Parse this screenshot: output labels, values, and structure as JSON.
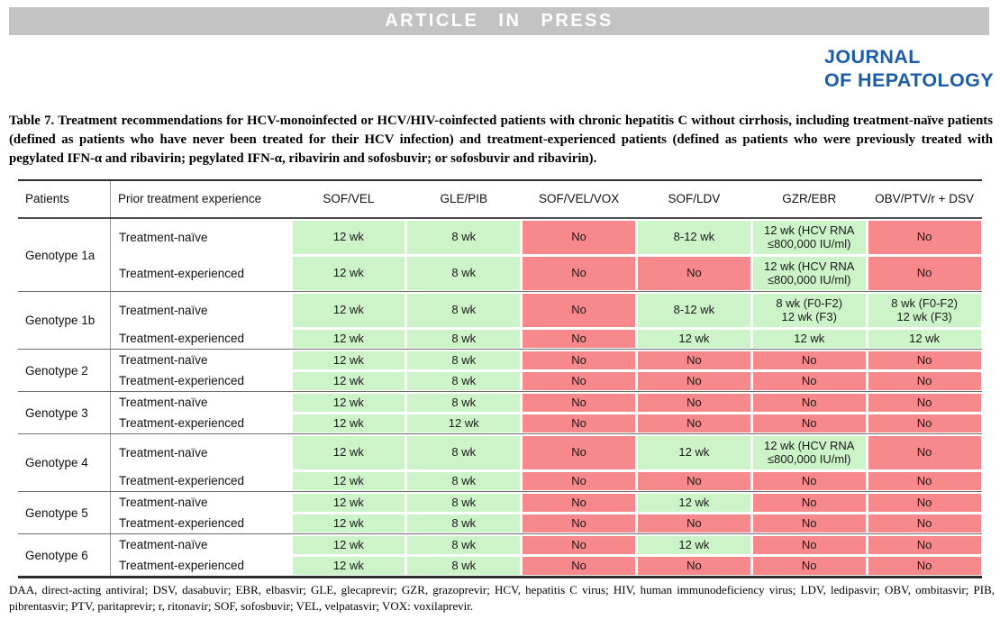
{
  "banner": {
    "text": "ARTICLE IN PRESS"
  },
  "journal": {
    "line1": "JOURNAL",
    "line2": "OF HEPATOLOGY"
  },
  "colors": {
    "banner_gray": "#c3c3c3",
    "journal_blue": "#1c5ca8",
    "yes_green": "#cdf3c9",
    "no_red": "#f7898c"
  },
  "caption": {
    "label": "Table 7",
    "rest": ". Treatment recommendations for HCV-monoinfected or HCV/HIV-coinfected patients with chronic hepatitis C without cirrhosis, including treatment-naïve patients (defined as patients who have never been treated for their HCV infection) and treatment-experienced patients (defined as patients who were previously treated with pegylated IFN-α and ribavirin; pegylated IFN-α, ribavirin and sofosbuvir; or sofosbuvir and ribavirin)."
  },
  "table": {
    "columns": [
      "Patients",
      "Prior treatment experience",
      "SOF/VEL",
      "GLE/PIB",
      "SOF/VEL/VOX",
      "SOF/LDV",
      "GZR/EBR",
      "OBV/PTV/r + DSV"
    ],
    "groups": [
      {
        "patient": "Genotype 1a",
        "rows": [
          {
            "experience": "Treatment-naïve",
            "h": 40,
            "cells": [
              {
                "text": "12 wk",
                "status": "yes"
              },
              {
                "text": "8 wk",
                "status": "yes"
              },
              {
                "text": "No",
                "status": "no"
              },
              {
                "text": "8-12 wk",
                "status": "yes"
              },
              {
                "text": "12 wk (HCV RNA\n≤800,000 IU/ml)",
                "status": "yes"
              },
              {
                "text": "No",
                "status": "no"
              }
            ]
          },
          {
            "experience": "Treatment-experienced",
            "h": 40,
            "cells": [
              {
                "text": "12 wk",
                "status": "yes"
              },
              {
                "text": "8 wk",
                "status": "yes"
              },
              {
                "text": "No",
                "status": "no"
              },
              {
                "text": "No",
                "status": "no"
              },
              {
                "text": "12 wk (HCV RNA\n≤800,000 IU/ml)",
                "status": "yes"
              },
              {
                "text": "No",
                "status": "no"
              }
            ]
          }
        ]
      },
      {
        "patient": "Genotype 1b",
        "rows": [
          {
            "experience": "Treatment-naïve",
            "h": 40,
            "cells": [
              {
                "text": "12 wk",
                "status": "yes"
              },
              {
                "text": "8 wk",
                "status": "yes"
              },
              {
                "text": "No",
                "status": "no"
              },
              {
                "text": "8-12 wk",
                "status": "yes"
              },
              {
                "text": "8 wk (F0-F2)\n12 wk (F3)",
                "status": "yes"
              },
              {
                "text": "8 wk (F0-F2)\n12 wk (F3)",
                "status": "yes"
              }
            ]
          },
          {
            "experience": "Treatment-experienced",
            "h": 23,
            "cells": [
              {
                "text": "12 wk",
                "status": "yes"
              },
              {
                "text": "8 wk",
                "status": "yes"
              },
              {
                "text": "No",
                "status": "no"
              },
              {
                "text": "12 wk",
                "status": "yes"
              },
              {
                "text": "12 wk",
                "status": "yes"
              },
              {
                "text": "12 wk",
                "status": "yes"
              }
            ]
          }
        ]
      },
      {
        "patient": "Genotype 2",
        "rows": [
          {
            "experience": "Treatment-naïve",
            "h": 23,
            "cells": [
              {
                "text": "12 wk",
                "status": "yes"
              },
              {
                "text": "8 wk",
                "status": "yes"
              },
              {
                "text": "No",
                "status": "no"
              },
              {
                "text": "No",
                "status": "no"
              },
              {
                "text": "No",
                "status": "no"
              },
              {
                "text": "No",
                "status": "no"
              }
            ]
          },
          {
            "experience": "Treatment-experienced",
            "h": 23,
            "cells": [
              {
                "text": "12 wk",
                "status": "yes"
              },
              {
                "text": "8 wk",
                "status": "yes"
              },
              {
                "text": "No",
                "status": "no"
              },
              {
                "text": "No",
                "status": "no"
              },
              {
                "text": "No",
                "status": "no"
              },
              {
                "text": "No",
                "status": "no"
              }
            ]
          }
        ]
      },
      {
        "patient": "Genotype 3",
        "rows": [
          {
            "experience": "Treatment-naïve",
            "h": 23,
            "cells": [
              {
                "text": "12 wk",
                "status": "yes"
              },
              {
                "text": "8 wk",
                "status": "yes"
              },
              {
                "text": "No",
                "status": "no"
              },
              {
                "text": "No",
                "status": "no"
              },
              {
                "text": "No",
                "status": "no"
              },
              {
                "text": "No",
                "status": "no"
              }
            ]
          },
          {
            "experience": "Treatment-experienced",
            "h": 23,
            "cells": [
              {
                "text": "12 wk",
                "status": "yes"
              },
              {
                "text": "12 wk",
                "status": "yes"
              },
              {
                "text": "No",
                "status": "no"
              },
              {
                "text": "No",
                "status": "no"
              },
              {
                "text": "No",
                "status": "no"
              },
              {
                "text": "No",
                "status": "no"
              }
            ]
          }
        ]
      },
      {
        "patient": "Genotype 4",
        "rows": [
          {
            "experience": "Treatment-naïve",
            "h": 40,
            "cells": [
              {
                "text": "12 wk",
                "status": "yes"
              },
              {
                "text": "8 wk",
                "status": "yes"
              },
              {
                "text": "No",
                "status": "no"
              },
              {
                "text": "12 wk",
                "status": "yes"
              },
              {
                "text": "12 wk (HCV RNA\n≤800,000 IU/ml)",
                "status": "yes"
              },
              {
                "text": "No",
                "status": "no"
              }
            ]
          },
          {
            "experience": "Treatment-experienced",
            "h": 23,
            "cells": [
              {
                "text": "12 wk",
                "status": "yes"
              },
              {
                "text": "8 wk",
                "status": "yes"
              },
              {
                "text": "No",
                "status": "no"
              },
              {
                "text": "No",
                "status": "no"
              },
              {
                "text": "No",
                "status": "no"
              },
              {
                "text": "No",
                "status": "no"
              }
            ]
          }
        ]
      },
      {
        "patient": "Genotype 5",
        "rows": [
          {
            "experience": "Treatment-naïve",
            "h": 23,
            "cells": [
              {
                "text": "12 wk",
                "status": "yes"
              },
              {
                "text": "8 wk",
                "status": "yes"
              },
              {
                "text": "No",
                "status": "no"
              },
              {
                "text": "12 wk",
                "status": "yes"
              },
              {
                "text": "No",
                "status": "no"
              },
              {
                "text": "No",
                "status": "no"
              }
            ]
          },
          {
            "experience": "Treatment-experienced",
            "h": 23,
            "cells": [
              {
                "text": "12 wk",
                "status": "yes"
              },
              {
                "text": "8 wk",
                "status": "yes"
              },
              {
                "text": "No",
                "status": "no"
              },
              {
                "text": "No",
                "status": "no"
              },
              {
                "text": "No",
                "status": "no"
              },
              {
                "text": "No",
                "status": "no"
              }
            ]
          }
        ]
      },
      {
        "patient": "Genotype 6",
        "rows": [
          {
            "experience": "Treatment-naïve",
            "h": 23,
            "cells": [
              {
                "text": "12 wk",
                "status": "yes"
              },
              {
                "text": "8 wk",
                "status": "yes"
              },
              {
                "text": "No",
                "status": "no"
              },
              {
                "text": "12 wk",
                "status": "yes"
              },
              {
                "text": "No",
                "status": "no"
              },
              {
                "text": "No",
                "status": "no"
              }
            ]
          },
          {
            "experience": "Treatment-experienced",
            "h": 23,
            "cells": [
              {
                "text": "12 wk",
                "status": "yes"
              },
              {
                "text": "8 wk",
                "status": "yes"
              },
              {
                "text": "No",
                "status": "no"
              },
              {
                "text": "No",
                "status": "no"
              },
              {
                "text": "No",
                "status": "no"
              },
              {
                "text": "No",
                "status": "no"
              }
            ]
          }
        ]
      }
    ]
  },
  "footnote": "DAA, direct-acting antiviral; DSV, dasabuvir; EBR, elbasvir; GLE, glecaprevir; GZR, grazoprevir; HCV, hepatitis C virus; HIV, human immunodeficiency virus; LDV, ledipasvir; OBV, ombitasvir; PIB, pibrentasvir; PTV, paritaprevir; r, ritonavir; SOF, sofosbuvir; VEL, velpatasvir; VOX: voxilaprevir."
}
